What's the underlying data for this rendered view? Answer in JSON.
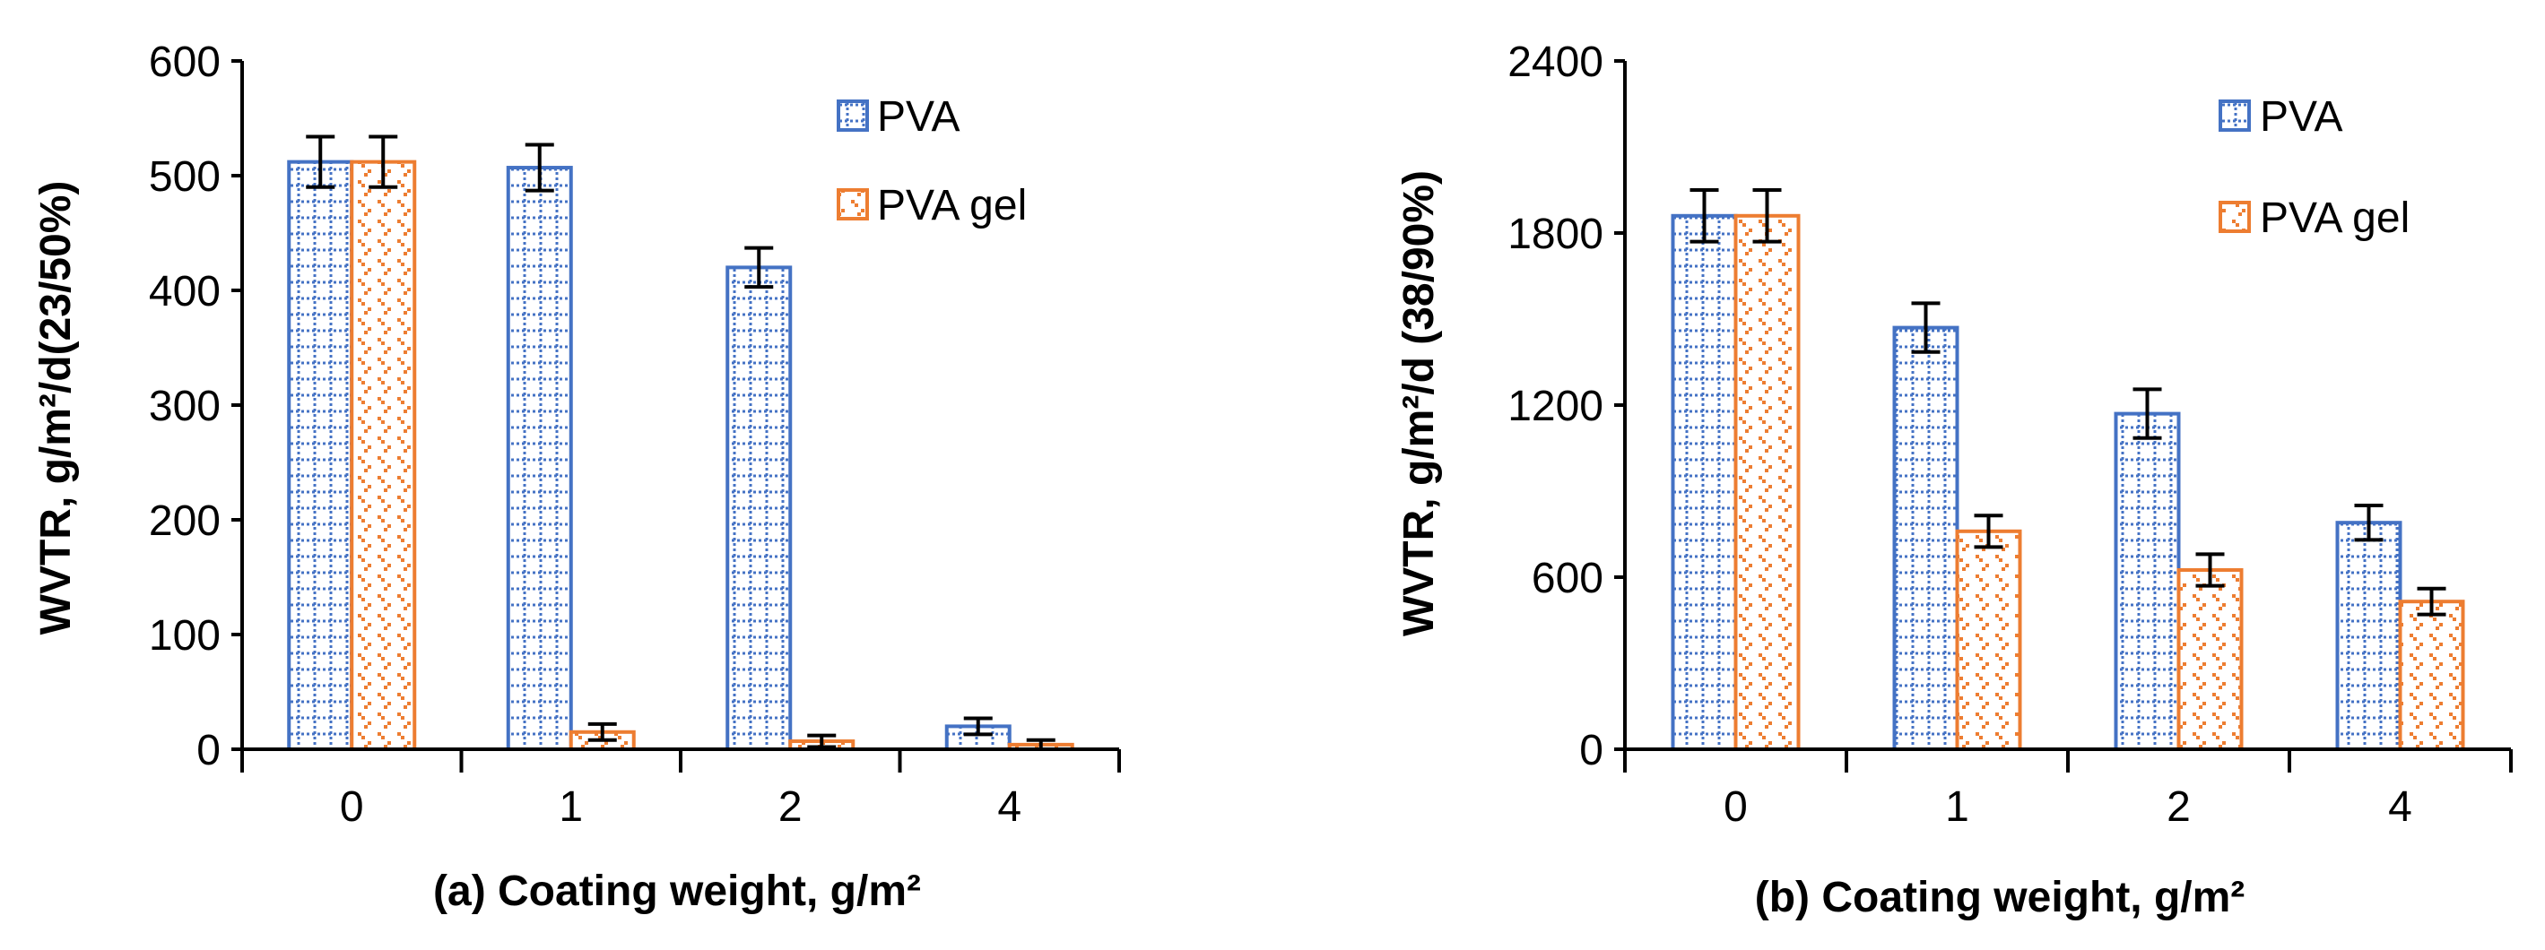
{
  "colors": {
    "pva": "#4472C4",
    "pva_gel": "#ED7D31",
    "axis": "#000000"
  },
  "chart_data": [
    {
      "type": "bar",
      "panel": "a",
      "categories": [
        "0",
        "1",
        "2",
        "4"
      ],
      "series": [
        {
          "name": "PVA",
          "values": [
            512,
            507,
            420,
            20
          ],
          "errors": [
            22,
            20,
            17,
            7
          ]
        },
        {
          "name": "PVA gel",
          "values": [
            512,
            15,
            7,
            4
          ],
          "errors": [
            22,
            7,
            5,
            4
          ]
        }
      ],
      "xlabel": "(a) Coating weight, g/m²",
      "ylabel": "WVTR, g/m²/d(23/50%)",
      "ylim": [
        0,
        600
      ],
      "yticks": [
        0,
        100,
        200,
        300,
        400,
        500,
        600
      ],
      "ytick_labels": [
        "0",
        "100",
        "200",
        "300",
        "400",
        "500",
        "600"
      ],
      "grid": false,
      "legend_position": "top-right"
    },
    {
      "type": "bar",
      "panel": "b",
      "categories": [
        "0",
        "1",
        "2",
        "4"
      ],
      "series": [
        {
          "name": "PVA",
          "values": [
            1860,
            1470,
            1170,
            790
          ],
          "errors": [
            90,
            85,
            85,
            60
          ]
        },
        {
          "name": "PVA gel",
          "values": [
            1860,
            760,
            625,
            515
          ],
          "errors": [
            90,
            55,
            55,
            45
          ]
        }
      ],
      "xlabel": "(b) Coating weight, g/m²",
      "ylabel": "WVTR, g/m²/d (38/90%)",
      "ylim": [
        0,
        2400
      ],
      "yticks": [
        0,
        600,
        1200,
        1800,
        2400
      ],
      "ytick_labels": [
        "0",
        "600",
        "1200",
        "1800",
        "2400"
      ],
      "grid": false,
      "legend_position": "top-right"
    }
  ]
}
